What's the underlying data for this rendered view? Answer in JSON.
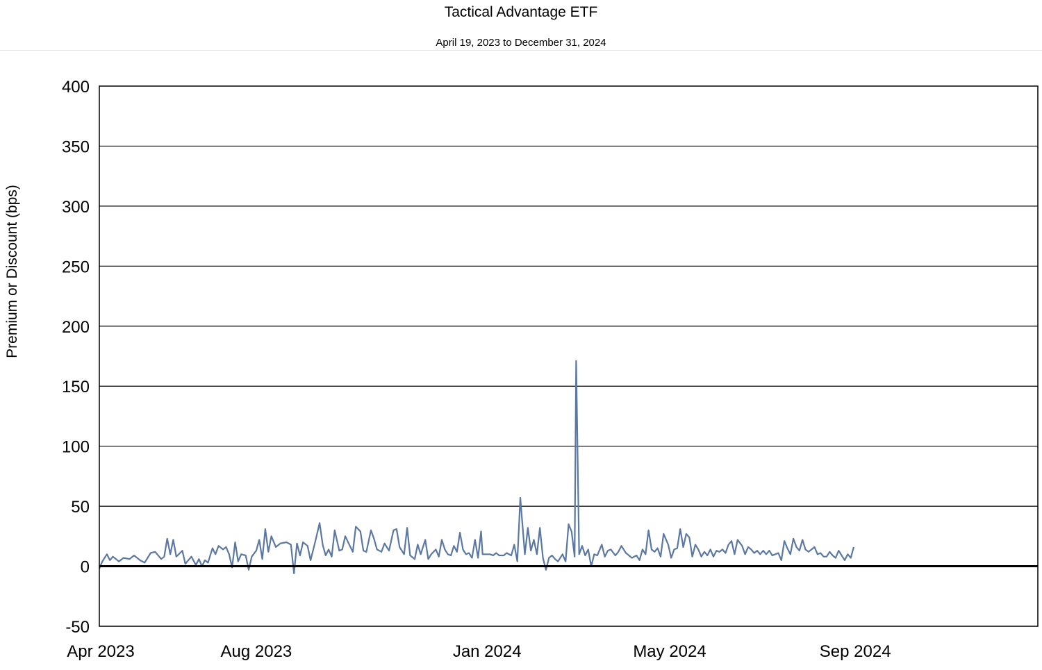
{
  "chart_data": {
    "type": "line",
    "title": "Tactical Advantage ETF",
    "subtitle": "April 19, 2023 to December 31, 2024",
    "xlabel": "",
    "ylabel": "Premium or Discount (bps)",
    "ylim": [
      -50,
      400
    ],
    "yticks": [
      -50,
      0,
      50,
      100,
      150,
      200,
      250,
      300,
      350,
      400
    ],
    "xlim": [
      "2023-04-19",
      "2024-12-31"
    ],
    "xticks": [
      {
        "date": "2023-04-19",
        "label": "Apr 2023"
      },
      {
        "date": "2023-08-01",
        "label": "Aug 2023"
      },
      {
        "date": "2024-01-01",
        "label": "Jan 2024"
      },
      {
        "date": "2024-05-01",
        "label": "May 2024"
      },
      {
        "date": "2024-09-01",
        "label": "Sep 2024"
      }
    ],
    "grid": true,
    "zero_line": true,
    "line_color": "#5b78a3",
    "series": [
      {
        "values": [
          [
            "2023-04-19",
            -2
          ],
          [
            "2023-04-21",
            4
          ],
          [
            "2023-04-24",
            10
          ],
          [
            "2023-04-26",
            5
          ],
          [
            "2023-04-28",
            8
          ],
          [
            "2023-05-02",
            4
          ],
          [
            "2023-05-05",
            7
          ],
          [
            "2023-05-09",
            6
          ],
          [
            "2023-05-12",
            9
          ],
          [
            "2023-05-16",
            5
          ],
          [
            "2023-05-19",
            3
          ],
          [
            "2023-05-23",
            11
          ],
          [
            "2023-05-26",
            12
          ],
          [
            "2023-05-30",
            6
          ],
          [
            "2023-06-01",
            8
          ],
          [
            "2023-06-03",
            23
          ],
          [
            "2023-06-05",
            10
          ],
          [
            "2023-06-07",
            22
          ],
          [
            "2023-06-09",
            8
          ],
          [
            "2023-06-13",
            13
          ],
          [
            "2023-06-15",
            2
          ],
          [
            "2023-06-19",
            8
          ],
          [
            "2023-06-22",
            1
          ],
          [
            "2023-06-24",
            6
          ],
          [
            "2023-06-26",
            0
          ],
          [
            "2023-06-28",
            5
          ],
          [
            "2023-06-30",
            3
          ],
          [
            "2023-07-03",
            15
          ],
          [
            "2023-07-05",
            10
          ],
          [
            "2023-07-07",
            17
          ],
          [
            "2023-07-10",
            14
          ],
          [
            "2023-07-12",
            16
          ],
          [
            "2023-07-14",
            10
          ],
          [
            "2023-07-16",
            -1
          ],
          [
            "2023-07-18",
            20
          ],
          [
            "2023-07-20",
            4
          ],
          [
            "2023-07-22",
            10
          ],
          [
            "2023-07-25",
            9
          ],
          [
            "2023-07-27",
            -3
          ],
          [
            "2023-07-29",
            8
          ],
          [
            "2023-08-01",
            13
          ],
          [
            "2023-08-03",
            22
          ],
          [
            "2023-08-05",
            6
          ],
          [
            "2023-08-07",
            31
          ],
          [
            "2023-08-09",
            12
          ],
          [
            "2023-08-11",
            25
          ],
          [
            "2023-08-14",
            16
          ],
          [
            "2023-08-17",
            19
          ],
          [
            "2023-08-21",
            20
          ],
          [
            "2023-08-24",
            18
          ],
          [
            "2023-08-26",
            -6
          ],
          [
            "2023-08-28",
            19
          ],
          [
            "2023-08-30",
            9
          ],
          [
            "2023-09-01",
            20
          ],
          [
            "2023-09-04",
            17
          ],
          [
            "2023-09-06",
            5
          ],
          [
            "2023-09-09",
            20
          ],
          [
            "2023-09-12",
            36
          ],
          [
            "2023-09-14",
            18
          ],
          [
            "2023-09-16",
            9
          ],
          [
            "2023-09-18",
            14
          ],
          [
            "2023-09-20",
            8
          ],
          [
            "2023-09-22",
            30
          ],
          [
            "2023-09-25",
            13
          ],
          [
            "2023-09-27",
            14
          ],
          [
            "2023-09-29",
            25
          ],
          [
            "2023-10-02",
            17
          ],
          [
            "2023-10-04",
            12
          ],
          [
            "2023-10-06",
            33
          ],
          [
            "2023-10-09",
            29
          ],
          [
            "2023-10-11",
            13
          ],
          [
            "2023-10-13",
            12
          ],
          [
            "2023-10-16",
            30
          ],
          [
            "2023-10-18",
            23
          ],
          [
            "2023-10-20",
            14
          ],
          [
            "2023-10-23",
            12
          ],
          [
            "2023-10-25",
            19
          ],
          [
            "2023-10-28",
            13
          ],
          [
            "2023-10-31",
            30
          ],
          [
            "2023-11-02",
            31
          ],
          [
            "2023-11-04",
            16
          ],
          [
            "2023-11-07",
            10
          ],
          [
            "2023-11-09",
            32
          ],
          [
            "2023-11-11",
            9
          ],
          [
            "2023-11-14",
            6
          ],
          [
            "2023-11-16",
            18
          ],
          [
            "2023-11-18",
            10
          ],
          [
            "2023-11-21",
            22
          ],
          [
            "2023-11-23",
            6
          ],
          [
            "2023-11-25",
            10
          ],
          [
            "2023-11-28",
            14
          ],
          [
            "2023-11-30",
            8
          ],
          [
            "2023-12-02",
            22
          ],
          [
            "2023-12-04",
            14
          ],
          [
            "2023-12-06",
            10
          ],
          [
            "2023-12-08",
            9
          ],
          [
            "2023-12-10",
            17
          ],
          [
            "2023-12-12",
            12
          ],
          [
            "2023-12-14",
            28
          ],
          [
            "2023-12-16",
            14
          ],
          [
            "2023-12-18",
            10
          ],
          [
            "2023-12-20",
            11
          ],
          [
            "2023-12-22",
            7
          ],
          [
            "2023-12-24",
            22
          ],
          [
            "2023-12-26",
            7
          ],
          [
            "2023-12-28",
            29
          ],
          [
            "2023-12-29",
            10
          ],
          [
            "2023-12-31",
            10
          ],
          [
            "2024-01-03",
            10
          ],
          [
            "2024-01-05",
            9
          ],
          [
            "2024-01-07",
            11
          ],
          [
            "2024-01-09",
            9
          ],
          [
            "2024-01-12",
            9
          ],
          [
            "2024-01-14",
            11
          ],
          [
            "2024-01-17",
            9
          ],
          [
            "2024-01-19",
            18
          ],
          [
            "2024-01-21",
            4
          ],
          [
            "2024-01-23",
            57
          ],
          [
            "2024-01-25",
            26
          ],
          [
            "2024-01-26",
            10
          ],
          [
            "2024-01-28",
            32
          ],
          [
            "2024-01-30",
            13
          ],
          [
            "2024-02-01",
            22
          ],
          [
            "2024-02-03",
            10
          ],
          [
            "2024-02-05",
            32
          ],
          [
            "2024-02-07",
            7
          ],
          [
            "2024-02-09",
            -3
          ],
          [
            "2024-02-11",
            7
          ],
          [
            "2024-02-13",
            9
          ],
          [
            "2024-02-15",
            6
          ],
          [
            "2024-02-17",
            4
          ],
          [
            "2024-02-20",
            10
          ],
          [
            "2024-02-22",
            4
          ],
          [
            "2024-02-24",
            35
          ],
          [
            "2024-02-26",
            29
          ],
          [
            "2024-02-28",
            8
          ],
          [
            "2024-02-29",
            171
          ],
          [
            "2024-03-02",
            10
          ],
          [
            "2024-03-04",
            17
          ],
          [
            "2024-03-06",
            9
          ],
          [
            "2024-03-08",
            14
          ],
          [
            "2024-03-10",
            0
          ],
          [
            "2024-03-12",
            10
          ],
          [
            "2024-03-14",
            9
          ],
          [
            "2024-03-17",
            18
          ],
          [
            "2024-03-19",
            8
          ],
          [
            "2024-03-21",
            13
          ],
          [
            "2024-03-23",
            14
          ],
          [
            "2024-03-26",
            9
          ],
          [
            "2024-03-28",
            12
          ],
          [
            "2024-03-30",
            17
          ],
          [
            "2024-04-02",
            11
          ],
          [
            "2024-04-04",
            9
          ],
          [
            "2024-04-06",
            7
          ],
          [
            "2024-04-09",
            9
          ],
          [
            "2024-04-11",
            5
          ],
          [
            "2024-04-13",
            14
          ],
          [
            "2024-04-15",
            10
          ],
          [
            "2024-04-17",
            30
          ],
          [
            "2024-04-19",
            14
          ],
          [
            "2024-04-21",
            12
          ],
          [
            "2024-04-23",
            15
          ],
          [
            "2024-04-25",
            8
          ],
          [
            "2024-04-27",
            27
          ],
          [
            "2024-04-30",
            18
          ],
          [
            "2024-05-02",
            7
          ],
          [
            "2024-05-04",
            14
          ],
          [
            "2024-05-06",
            15
          ],
          [
            "2024-05-08",
            31
          ],
          [
            "2024-05-10",
            16
          ],
          [
            "2024-05-12",
            27
          ],
          [
            "2024-05-14",
            24
          ],
          [
            "2024-05-16",
            8
          ],
          [
            "2024-05-18",
            18
          ],
          [
            "2024-05-20",
            14
          ],
          [
            "2024-05-22",
            8
          ],
          [
            "2024-05-24",
            12
          ],
          [
            "2024-05-26",
            9
          ],
          [
            "2024-05-28",
            14
          ],
          [
            "2024-05-30",
            8
          ],
          [
            "2024-06-01",
            13
          ],
          [
            "2024-06-03",
            12
          ],
          [
            "2024-06-05",
            14
          ],
          [
            "2024-06-07",
            11
          ],
          [
            "2024-06-09",
            18
          ],
          [
            "2024-06-11",
            21
          ],
          [
            "2024-06-13",
            10
          ],
          [
            "2024-06-15",
            22
          ],
          [
            "2024-06-18",
            17
          ],
          [
            "2024-06-20",
            10
          ],
          [
            "2024-06-22",
            16
          ],
          [
            "2024-06-24",
            14
          ],
          [
            "2024-06-26",
            11
          ],
          [
            "2024-06-28",
            13
          ],
          [
            "2024-06-30",
            10
          ],
          [
            "2024-07-02",
            13
          ],
          [
            "2024-07-04",
            10
          ],
          [
            "2024-07-06",
            13
          ],
          [
            "2024-07-08",
            9
          ],
          [
            "2024-07-10",
            10
          ],
          [
            "2024-07-12",
            11
          ],
          [
            "2024-07-14",
            5
          ],
          [
            "2024-07-16",
            21
          ],
          [
            "2024-07-18",
            15
          ],
          [
            "2024-07-20",
            10
          ],
          [
            "2024-07-22",
            23
          ],
          [
            "2024-07-24",
            16
          ],
          [
            "2024-07-26",
            13
          ],
          [
            "2024-07-28",
            22
          ],
          [
            "2024-07-30",
            14
          ],
          [
            "2024-08-01",
            12
          ],
          [
            "2024-08-03",
            14
          ],
          [
            "2024-08-05",
            16
          ],
          [
            "2024-08-07",
            10
          ],
          [
            "2024-08-09",
            11
          ],
          [
            "2024-08-11",
            8
          ],
          [
            "2024-08-13",
            8
          ],
          [
            "2024-08-15",
            12
          ],
          [
            "2024-08-17",
            9
          ],
          [
            "2024-08-19",
            7
          ],
          [
            "2024-08-21",
            13
          ],
          [
            "2024-08-23",
            9
          ],
          [
            "2024-08-25",
            5
          ],
          [
            "2024-08-27",
            10
          ],
          [
            "2024-08-29",
            7
          ],
          [
            "2024-08-31",
            16
          ]
        ]
      }
    ]
  }
}
